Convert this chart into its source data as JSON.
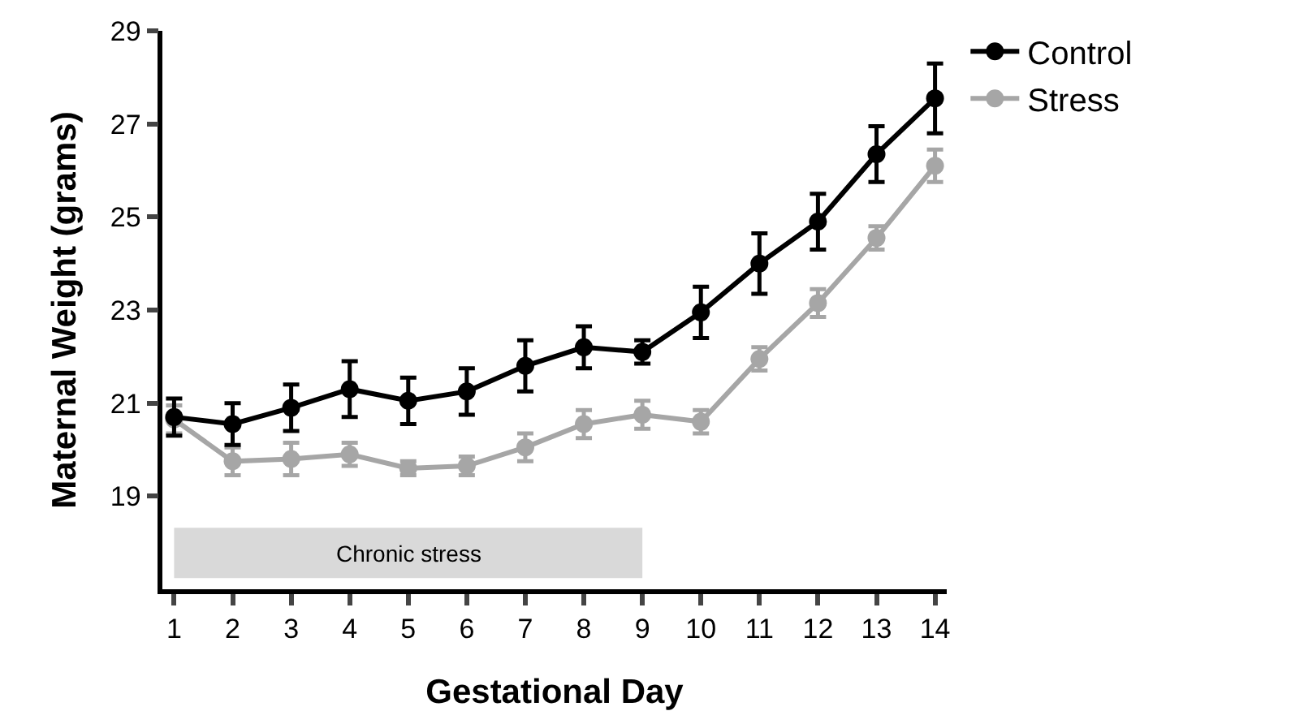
{
  "chart_data": {
    "type": "line",
    "xlabel": "Gestational Day",
    "ylabel": "Maternal Weight (grams)",
    "x": [
      1,
      2,
      3,
      4,
      5,
      6,
      7,
      8,
      9,
      10,
      11,
      12,
      13,
      14
    ],
    "xlim": [
      0.8,
      14.2
    ],
    "xticks": [
      1,
      2,
      3,
      4,
      5,
      6,
      7,
      8,
      9,
      10,
      11,
      12,
      13,
      14
    ],
    "ylim": [
      17,
      29
    ],
    "yticks": [
      19,
      21,
      23,
      25,
      27,
      29
    ],
    "series": [
      {
        "name": "Control",
        "color": "#000000",
        "values": [
          20.7,
          20.55,
          20.9,
          21.3,
          21.05,
          21.25,
          21.8,
          22.2,
          22.1,
          22.95,
          24.0,
          24.9,
          26.35,
          27.55
        ],
        "errors": [
          0.4,
          0.45,
          0.5,
          0.6,
          0.5,
          0.5,
          0.55,
          0.45,
          0.25,
          0.55,
          0.65,
          0.6,
          0.6,
          0.75
        ]
      },
      {
        "name": "Stress",
        "color": "#a6a6a6",
        "values": [
          20.65,
          19.75,
          19.8,
          19.9,
          19.6,
          19.65,
          20.05,
          20.55,
          20.75,
          20.6,
          21.95,
          23.15,
          24.55,
          26.1
        ],
        "errors": [
          0.3,
          0.3,
          0.35,
          0.25,
          0.15,
          0.2,
          0.3,
          0.3,
          0.3,
          0.25,
          0.25,
          0.3,
          0.25,
          0.35
        ]
      }
    ],
    "bands": [
      {
        "axis": "x",
        "from": 1,
        "to": 9,
        "label": "Chronic stress",
        "color": "#d9d9d9"
      }
    ],
    "marker": "circle",
    "line_style": "solid",
    "grid": false,
    "legend": "top right"
  }
}
